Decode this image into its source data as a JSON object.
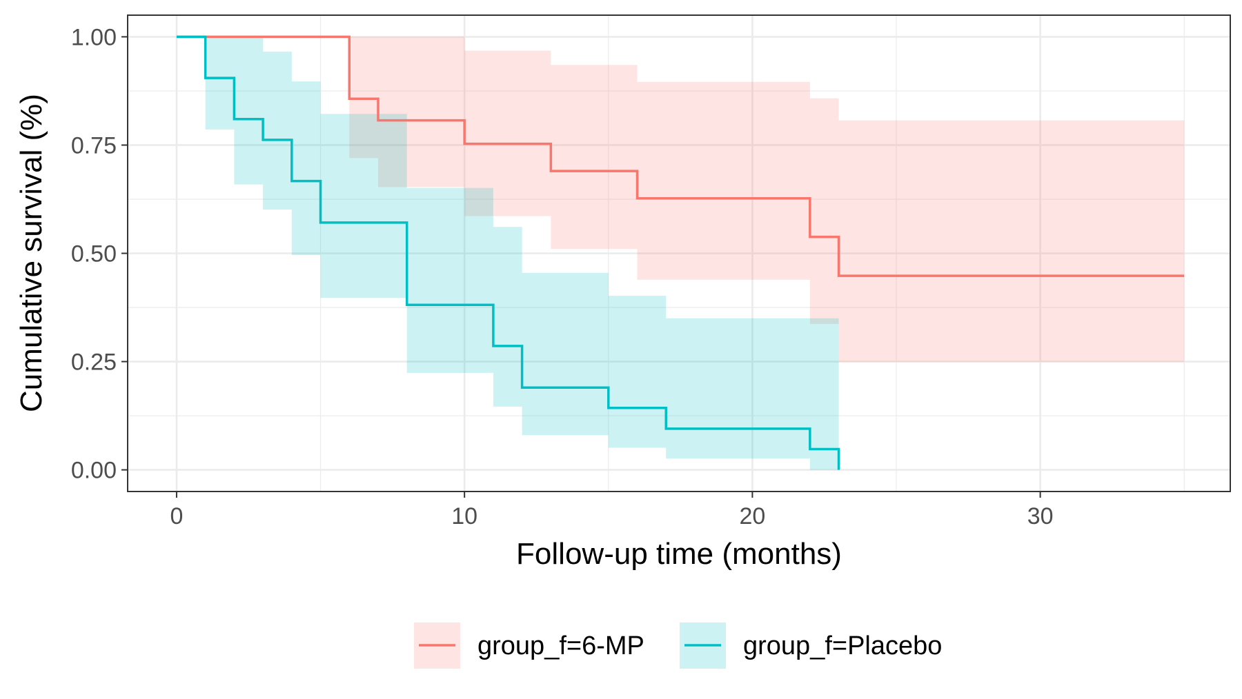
{
  "chart_data": {
    "type": "line",
    "subtype": "kaplan-meier step curves with confidence bands",
    "xlabel": "Follow-up time (months)",
    "ylabel": "Cumulative survival (%)",
    "xlim": [
      -1.7,
      36.6
    ],
    "ylim": [
      -0.05,
      1.05
    ],
    "x_ticks": [
      0,
      10,
      20,
      30
    ],
    "x_tick_labels": [
      "0",
      "10",
      "20",
      "30"
    ],
    "y_ticks": [
      0,
      0.25,
      0.5,
      0.75,
      1
    ],
    "y_tick_labels": [
      "0.00",
      "0.25",
      "0.50",
      "0.75",
      "1.00"
    ],
    "grid": true,
    "legend_position": "bottom",
    "series": [
      {
        "name": "group_f=6-MP",
        "color": "#F8766D",
        "x": [
          0,
          6,
          7,
          10,
          13,
          16,
          22,
          23,
          35
        ],
        "surv": [
          1.0,
          0.857,
          0.807,
          0.753,
          0.69,
          0.627,
          0.538,
          0.448,
          0.448
        ],
        "lower": [
          1.0,
          0.72,
          0.653,
          0.586,
          0.51,
          0.439,
          0.337,
          0.249,
          0.249
        ],
        "upper": [
          1.0,
          1.0,
          1.0,
          0.968,
          0.935,
          0.896,
          0.858,
          0.807,
          0.807
        ]
      },
      {
        "name": "group_f=Placebo",
        "color": "#00BFC4",
        "x": [
          0,
          1,
          2,
          3,
          4,
          5,
          8,
          11,
          12,
          15,
          17,
          22,
          23
        ],
        "surv": [
          1.0,
          0.905,
          0.81,
          0.762,
          0.667,
          0.571,
          0.381,
          0.286,
          0.19,
          0.143,
          0.095,
          0.048,
          0.0
        ],
        "lower": [
          1.0,
          0.786,
          0.659,
          0.601,
          0.496,
          0.397,
          0.224,
          0.146,
          0.08,
          0.051,
          0.026,
          0.0,
          0.0
        ],
        "upper": [
          1.0,
          1.0,
          1.0,
          0.966,
          0.897,
          0.822,
          0.651,
          0.561,
          0.455,
          0.402,
          0.35,
          0.35,
          0.0
        ]
      }
    ]
  }
}
